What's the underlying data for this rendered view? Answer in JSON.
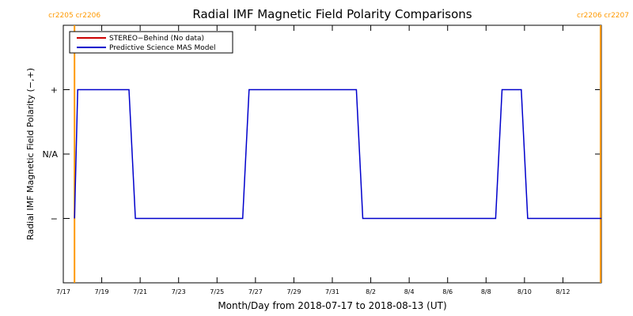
{
  "chart_data": {
    "type": "line",
    "title": "Radial IMF Magnetic Field Polarity Comparisons",
    "xlabel": "Month/Day from 2018-07-17 to 2018-08-13 (UT)",
    "ylabel": "Radial IMF Magnetic Field Polarity (−,+)",
    "x_range": [
      "2018-07-17",
      "2018-08-13"
    ],
    "x_ticks": [
      {
        "date": "2018-07-17",
        "label": "7/17"
      },
      {
        "date": "2018-07-19",
        "label": "7/19"
      },
      {
        "date": "2018-07-21",
        "label": "7/21"
      },
      {
        "date": "2018-07-23",
        "label": "7/23"
      },
      {
        "date": "2018-07-25",
        "label": "7/25"
      },
      {
        "date": "2018-07-27",
        "label": "7/27"
      },
      {
        "date": "2018-07-29",
        "label": "7/29"
      },
      {
        "date": "2018-07-31",
        "label": "7/31"
      },
      {
        "date": "2018-08-02",
        "label": "8/2"
      },
      {
        "date": "2018-08-04",
        "label": "8/4"
      },
      {
        "date": "2018-08-06",
        "label": "8/6"
      },
      {
        "date": "2018-08-08",
        "label": "8/8"
      },
      {
        "date": "2018-08-10",
        "label": "8/10"
      },
      {
        "date": "2018-08-12",
        "label": "8/12"
      }
    ],
    "y_ticks": [
      {
        "value": 1,
        "label": "+"
      },
      {
        "value": 0,
        "label": "N/A"
      },
      {
        "value": -1,
        "label": "−"
      }
    ],
    "ylim": [
      -2,
      2
    ],
    "legend": {
      "position": "top-left",
      "entries": [
        {
          "label": "STEREO−Behind (No data)",
          "color": "#cc0000"
        },
        {
          "label": "Predictive Science MAS Model",
          "color": "#0000cc"
        }
      ]
    },
    "series": [
      {
        "name": "Predictive Science MAS Model",
        "color": "#0000cc",
        "points": [
          [
            "2018-07-17T14:00",
            -1
          ],
          [
            "2018-07-17T18:00",
            1
          ],
          [
            "2018-07-20T10:00",
            1
          ],
          [
            "2018-07-20T18:00",
            -1
          ],
          [
            "2018-07-26T08:00",
            -1
          ],
          [
            "2018-07-26T16:00",
            1
          ],
          [
            "2018-08-01T06:00",
            1
          ],
          [
            "2018-08-01T14:00",
            -1
          ],
          [
            "2018-08-08T12:00",
            -1
          ],
          [
            "2018-08-08T20:00",
            1
          ],
          [
            "2018-08-09T20:00",
            1
          ],
          [
            "2018-08-10T04:00",
            -1
          ],
          [
            "2018-08-13T23:59",
            -1
          ]
        ]
      }
    ],
    "carrington_markers": [
      {
        "date": "2018-07-17T14:00",
        "labels": [
          "cr2205",
          "cr2206"
        ],
        "color": "#ff9900"
      },
      {
        "date": "2018-08-13T23:00",
        "labels": [
          "cr2206",
          "cr2207"
        ],
        "color": "#ff9900"
      }
    ]
  }
}
